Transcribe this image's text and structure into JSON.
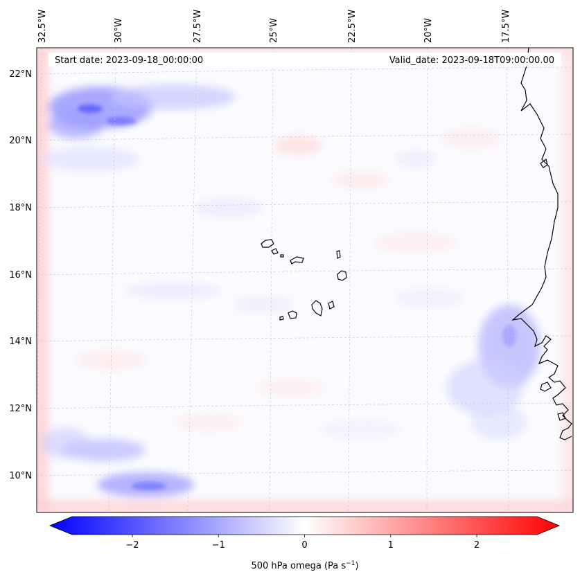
{
  "header": {
    "start_date": "Start date: 2023-09-18_00:00:00",
    "valid_date": "Valid_date: 2023-09-18T09:00:00.00"
  },
  "lon_labels": [
    "32.5°W",
    "30°W",
    "27.5°W",
    "25°W",
    "22.5°W",
    "20°W",
    "17.5°W"
  ],
  "lat_labels": [
    "22°N",
    "20°N",
    "18°N",
    "16°N",
    "14°N",
    "12°N",
    "10°N"
  ],
  "colorbar": {
    "label_main": "500 hPa omega (Pa s",
    "label_exp": "−1",
    "label_close": ")",
    "tick_labels": [
      "−2",
      "−1",
      "0",
      "1",
      "2"
    ],
    "range": [
      -2.7,
      2.7
    ],
    "low_color": "#0000ff",
    "mid_color": "#ffffff",
    "high_color": "#ff0000"
  },
  "colors": {
    "coastline": "#000000",
    "gridline": "#c8c8c8",
    "updraft_blue": "#6f6fff",
    "downdraft_red": "#ff8a8a"
  }
}
